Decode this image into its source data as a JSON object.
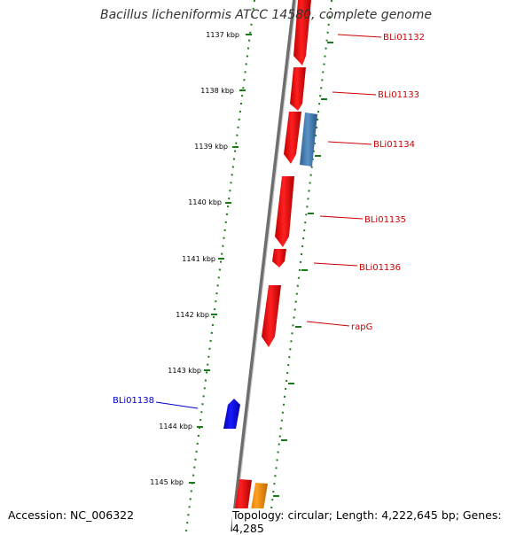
{
  "title": "Bacillus licheniformis ATCC 14580, complete genome",
  "footer": {
    "accession": "Accession: NC_006322",
    "stats": "Topology: circular; Length: 4,222,645 bp; Genes: 4,285"
  },
  "colors": {
    "forward_gene": "#ff0000",
    "reverse_gene": "#0000ff",
    "other_gene": "#4a86c0",
    "rna_gene": "#ff9900",
    "ruler": "#1a7a1a",
    "forward_label": "#cc0000",
    "reverse_label": "#0000cc"
  },
  "ticks": [
    "1137 kbp",
    "1138 kbp",
    "1139 kbp",
    "1140 kbp",
    "1141 kbp",
    "1142 kbp",
    "1143 kbp",
    "1144 kbp",
    "1145 kbp"
  ],
  "gene_labels": [
    {
      "name": "BLi01132",
      "strand": "forward"
    },
    {
      "name": "BLi01133",
      "strand": "forward"
    },
    {
      "name": "BLi01134",
      "strand": "forward"
    },
    {
      "name": "BLi01135",
      "strand": "forward"
    },
    {
      "name": "BLi01136",
      "strand": "forward"
    },
    {
      "name": "rapG",
      "strand": "forward"
    },
    {
      "name": "BLi01138",
      "strand": "reverse"
    }
  ]
}
